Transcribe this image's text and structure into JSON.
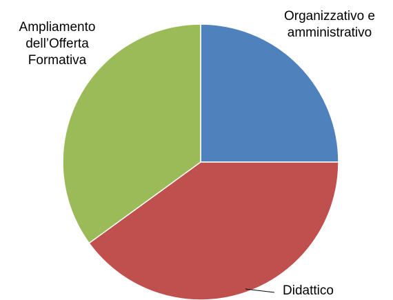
{
  "chart_data": {
    "type": "pie",
    "categories": [
      "Organizzativo e\namministrativo",
      "Didattico",
      "Ampliamento\ndell’Offerta\nFormativa"
    ],
    "values": [
      25,
      40,
      35
    ],
    "colors": [
      "#4f81bd",
      "#c0504d",
      "#9bbb59"
    ]
  }
}
